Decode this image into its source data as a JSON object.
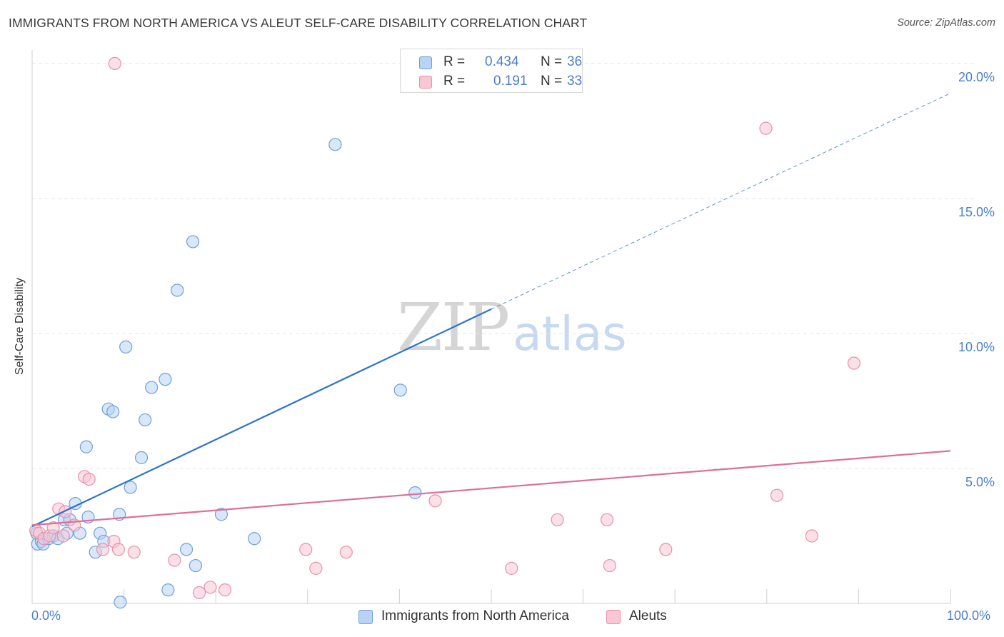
{
  "title": "IMMIGRANTS FROM NORTH AMERICA VS ALEUT SELF-CARE DISABILITY CORRELATION CHART",
  "source": "Source: ZipAtlas.com",
  "watermark": {
    "zip": "ZIP",
    "atlas": "atlas"
  },
  "legend": {
    "r_label": "R =",
    "n_label": "N =",
    "rows": [
      {
        "r": "0.434",
        "n": "36"
      },
      {
        "r": "0.191",
        "n": "33"
      }
    ]
  },
  "colors": {
    "blue_fill": "#b8d3f4",
    "blue_stroke": "#6f9fd9",
    "blue_line": "#2d74cf",
    "pink_fill": "#f8c6d5",
    "pink_stroke": "#e890ab",
    "pink_line": "#e06e98",
    "grid": "#e4e4e4",
    "tick_text": "#4a7fd0"
  },
  "chart_data": {
    "type": "scatter",
    "title": "IMMIGRANTS FROM NORTH AMERICA VS ALEUT SELF-CARE DISABILITY CORRELATION CHART",
    "xlabel": "",
    "ylabel": "Self-Care Disability",
    "xlim": [
      0,
      100
    ],
    "ylim": [
      0,
      20.5
    ],
    "x_tick_labels": [
      "0.0%",
      "100.0%"
    ],
    "y_ticks": [
      5,
      10,
      15,
      20
    ],
    "y_tick_labels": [
      "5.0%",
      "10.0%",
      "15.0%",
      "20.0%"
    ],
    "series": [
      {
        "name": "Immigrants from North America",
        "color_key": "blue",
        "trend": {
          "x0": 0,
          "y0": 2.85,
          "x1": 50,
          "y1": 10.9,
          "dash_to_x": 100,
          "dash_to_y": 18.9
        },
        "points": [
          [
            0.5,
            2.6
          ],
          [
            0.6,
            2.2
          ],
          [
            1.0,
            2.3
          ],
          [
            1.2,
            2.2
          ],
          [
            1.8,
            2.4
          ],
          [
            2.3,
            2.5
          ],
          [
            2.8,
            2.4
          ],
          [
            3.5,
            3.1
          ],
          [
            3.8,
            2.6
          ],
          [
            4.1,
            3.1
          ],
          [
            4.7,
            3.7
          ],
          [
            5.2,
            2.6
          ],
          [
            5.9,
            5.8
          ],
          [
            6.1,
            3.2
          ],
          [
            6.9,
            1.9
          ],
          [
            7.4,
            2.6
          ],
          [
            7.8,
            2.3
          ],
          [
            8.3,
            7.2
          ],
          [
            8.8,
            7.1
          ],
          [
            9.5,
            3.3
          ],
          [
            10.2,
            9.5
          ],
          [
            10.7,
            4.3
          ],
          [
            11.9,
            5.4
          ],
          [
            12.3,
            6.8
          ],
          [
            13.0,
            8.0
          ],
          [
            14.5,
            8.3
          ],
          [
            14.8,
            0.5
          ],
          [
            15.8,
            11.6
          ],
          [
            16.8,
            2.0
          ],
          [
            17.5,
            13.4
          ],
          [
            17.8,
            1.4
          ],
          [
            20.6,
            3.3
          ],
          [
            24.2,
            2.4
          ],
          [
            33.0,
            17.0
          ],
          [
            40.1,
            7.9
          ],
          [
            41.7,
            4.1
          ],
          [
            9.6,
            0.05
          ]
        ]
      },
      {
        "name": "Aleuts",
        "color_key": "pink",
        "trend": {
          "x0": 0,
          "y0": 2.9,
          "x1": 100,
          "y1": 5.65
        },
        "points": [
          [
            0.4,
            2.7
          ],
          [
            0.8,
            2.6
          ],
          [
            1.3,
            2.4
          ],
          [
            1.9,
            2.5
          ],
          [
            2.3,
            2.8
          ],
          [
            2.9,
            3.5
          ],
          [
            3.4,
            2.5
          ],
          [
            3.6,
            3.4
          ],
          [
            4.6,
            2.9
          ],
          [
            5.7,
            4.7
          ],
          [
            6.2,
            4.6
          ],
          [
            7.7,
            2.0
          ],
          [
            9.0,
            20.0
          ],
          [
            8.9,
            2.3
          ],
          [
            9.4,
            2.0
          ],
          [
            11.1,
            1.9
          ],
          [
            15.5,
            1.6
          ],
          [
            18.2,
            0.4
          ],
          [
            19.4,
            0.6
          ],
          [
            21.0,
            0.5
          ],
          [
            29.8,
            2.0
          ],
          [
            30.9,
            1.3
          ],
          [
            34.2,
            1.9
          ],
          [
            43.9,
            3.8
          ],
          [
            52.2,
            1.3
          ],
          [
            57.2,
            3.1
          ],
          [
            62.6,
            3.1
          ],
          [
            62.9,
            1.4
          ],
          [
            69.0,
            2.0
          ],
          [
            79.9,
            17.6
          ],
          [
            81.1,
            4.0
          ],
          [
            84.9,
            2.5
          ],
          [
            89.5,
            8.9
          ]
        ]
      }
    ]
  },
  "bottom_legend": [
    {
      "label": "Immigrants from North America"
    },
    {
      "label": "Aleuts"
    }
  ]
}
